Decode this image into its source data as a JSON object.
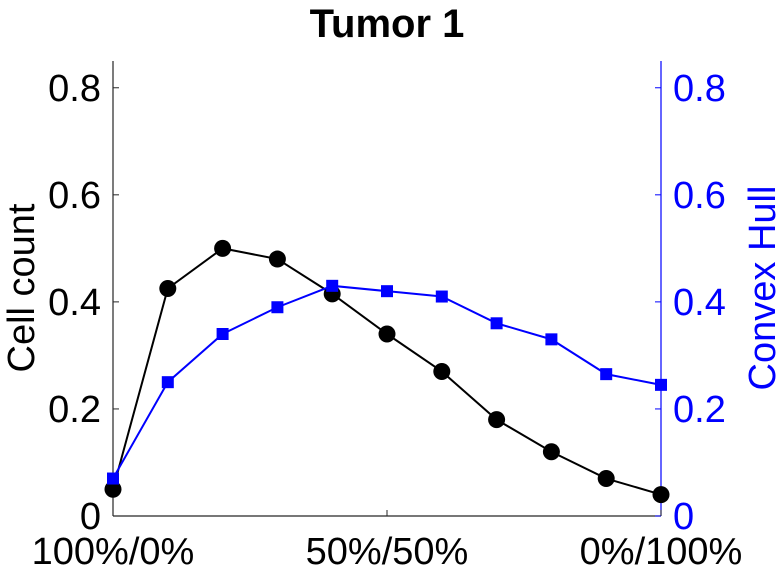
{
  "chart_data": {
    "type": "line",
    "title": "Tumor 1",
    "xlabel": "",
    "x": [
      0,
      1,
      2,
      3,
      4,
      5,
      6,
      7,
      8,
      9,
      10
    ],
    "xticks": [
      {
        "x": 0,
        "label": "100%/0%"
      },
      {
        "x": 5,
        "label": "50%/50%"
      },
      {
        "x": 10,
        "label": "0%/100%"
      }
    ],
    "xlim": [
      0,
      10
    ],
    "left_axis": {
      "label": "Cell count",
      "color": "#000000",
      "ylim": [
        0,
        0.85
      ],
      "ticks": [
        {
          "v": 0,
          "label": "0"
        },
        {
          "v": 0.2,
          "label": "0.2"
        },
        {
          "v": 0.4,
          "label": "0.4"
        },
        {
          "v": 0.6,
          "label": "0.6"
        },
        {
          "v": 0.8,
          "label": "0.8"
        }
      ]
    },
    "right_axis": {
      "label": "Convex Hull",
      "color": "#0000ff",
      "ylim": [
        0,
        0.85
      ],
      "ticks": [
        {
          "v": 0,
          "label": "0"
        },
        {
          "v": 0.2,
          "label": "0.2"
        },
        {
          "v": 0.4,
          "label": "0.4"
        },
        {
          "v": 0.6,
          "label": "0.6"
        },
        {
          "v": 0.8,
          "label": "0.8"
        }
      ]
    },
    "series": [
      {
        "axis": "left",
        "color": "#000000",
        "marker": "circle",
        "values": [
          0.05,
          0.425,
          0.5,
          0.48,
          0.415,
          0.34,
          0.27,
          0.18,
          0.12,
          0.07,
          0.04
        ]
      },
      {
        "axis": "right",
        "color": "#0000ff",
        "marker": "square",
        "values": [
          0.07,
          0.25,
          0.34,
          0.39,
          0.43,
          0.42,
          0.41,
          0.36,
          0.33,
          0.265,
          0.245
        ]
      }
    ],
    "grid": false
  }
}
